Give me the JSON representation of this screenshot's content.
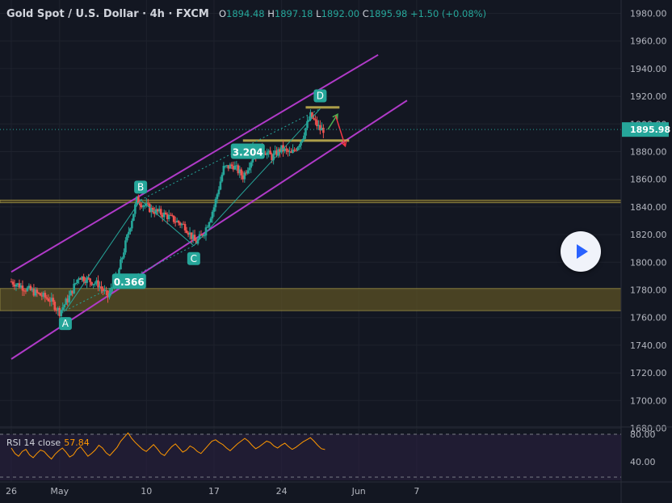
{
  "header": {
    "symbol": "Gold Spot / U.S. Dollar · 4h · FXCM",
    "open_label": "O",
    "open": "1894.48",
    "high_label": "H",
    "high": "1897.18",
    "low_label": "L",
    "low": "1892.00",
    "close_label": "C",
    "close": "1895.98",
    "change": "+1.50 (+0.08%)"
  },
  "rsi": {
    "label": "RSI 14 close",
    "value": "57.84",
    "ticks": [
      "80.00",
      "40.00"
    ]
  },
  "colors": {
    "background": "#131722",
    "grid": "#1e222d",
    "up": "#26a69a",
    "down": "#ef5350",
    "channel": "#b03ac8",
    "zone": "#5b5124",
    "zone_line": "#c8b650",
    "rsi_line": "#ff9800",
    "rsi_band": "#2a2040",
    "pattern": "#26a69a"
  },
  "play_button": {
    "icon": "play-icon"
  },
  "chart_data": {
    "type": "candlestick",
    "title": "Gold Spot / U.S. Dollar, 4h, FXCM",
    "ylim": [
      1670,
      1985
    ],
    "y_ticks": [
      1680,
      1700,
      1720,
      1740,
      1760,
      1780,
      1800,
      1820,
      1840,
      1860,
      1880,
      1900,
      1920,
      1940,
      1960,
      1980
    ],
    "y_tick_labels": [
      "1680.00",
      "1700.00",
      "1720.00",
      "1740.00",
      "1760.00",
      "1780.00",
      "1800.00",
      "1820.00",
      "1840.00",
      "1860.00",
      "1880.00",
      "1900.00",
      "1920.00",
      "1940.00",
      "1960.00",
      "1980.00"
    ],
    "x_tick_labels": [
      "26",
      "May",
      "10",
      "17",
      "24",
      "Jun",
      "7"
    ],
    "x_ticks_day": [
      0,
      5,
      14,
      21,
      28,
      36,
      42
    ],
    "last_price": 1895.98,
    "last_price_label": "1895.98",
    "swings": [
      {
        "day": 0,
        "price": 1786
      },
      {
        "day": 4,
        "price": 1773
      },
      {
        "day": 5,
        "price": 1764
      },
      {
        "day": 6,
        "price": 1775
      },
      {
        "day": 7,
        "price": 1790
      },
      {
        "day": 9,
        "price": 1784
      },
      {
        "day": 10,
        "price": 1775
      },
      {
        "day": 11,
        "price": 1790
      },
      {
        "day": 12,
        "price": 1818
      },
      {
        "day": 13,
        "price": 1845
      },
      {
        "day": 14.5,
        "price": 1838
      },
      {
        "day": 16,
        "price": 1834
      },
      {
        "day": 18,
        "price": 1826
      },
      {
        "day": 19.1,
        "price": 1814
      },
      {
        "day": 20,
        "price": 1822
      },
      {
        "day": 21,
        "price": 1840
      },
      {
        "day": 22,
        "price": 1868
      },
      {
        "day": 23,
        "price": 1870
      },
      {
        "day": 24,
        "price": 1862
      },
      {
        "day": 25,
        "price": 1876
      },
      {
        "day": 26,
        "price": 1882
      },
      {
        "day": 27,
        "price": 1876
      },
      {
        "day": 28,
        "price": 1882
      },
      {
        "day": 29,
        "price": 1878
      },
      {
        "day": 30,
        "price": 1888
      },
      {
        "day": 31,
        "price": 1906
      },
      {
        "day": 32,
        "price": 1896
      },
      {
        "day": 32.5,
        "price": 1896
      }
    ],
    "zones": [
      {
        "from": 1765,
        "to": 1781
      },
      {
        "from": 1843,
        "to": 1845
      }
    ],
    "levels": [
      {
        "price": 1912,
        "from_day": 30.5,
        "to_day": 34
      },
      {
        "price": 1888,
        "from_day": 24,
        "to_day": 35
      }
    ],
    "channel": [
      {
        "from": [
          0,
          1793
        ],
        "to": [
          38,
          1950
        ]
      },
      {
        "from": [
          0,
          1730
        ],
        "to": [
          41,
          1917
        ]
      }
    ],
    "harmonic_points": [
      {
        "label": "A",
        "day": 5.6,
        "price": 1765
      },
      {
        "label": "B",
        "day": 13.4,
        "price": 1845
      },
      {
        "label": "C",
        "day": 18.9,
        "price": 1812
      },
      {
        "label": "D",
        "day": 32,
        "price": 1911
      }
    ],
    "ratios": [
      {
        "label": "0.366",
        "day": 12.2,
        "price": 1786
      },
      {
        "label": "3.204",
        "day": 24.5,
        "price": 1880
      }
    ],
    "projections": [
      {
        "direction": "up",
        "from": [
          32.8,
          1896
        ],
        "to": [
          33.8,
          1907
        ]
      },
      {
        "direction": "down",
        "from": [
          33.6,
          1906
        ],
        "to": [
          34.6,
          1884
        ]
      }
    ],
    "rsi_series": [
      60,
      52,
      48,
      55,
      58,
      50,
      46,
      52,
      57,
      55,
      49,
      44,
      51,
      56,
      60,
      54,
      47,
      50,
      58,
      62,
      55,
      48,
      52,
      57,
      64,
      60,
      53,
      49,
      55,
      61,
      70,
      76,
      82,
      74,
      68,
      63,
      58,
      55,
      60,
      65,
      59,
      52,
      49,
      56,
      62,
      66,
      60,
      54,
      57,
      63,
      60,
      55,
      52,
      58,
      64,
      70,
      72,
      68,
      65,
      60,
      56,
      61,
      66,
      70,
      74,
      70,
      64,
      59,
      62,
      66,
      70,
      68,
      63,
      60,
      64,
      67,
      62,
      58,
      61,
      65,
      69,
      72,
      75,
      70,
      64,
      59,
      57.84
    ]
  }
}
